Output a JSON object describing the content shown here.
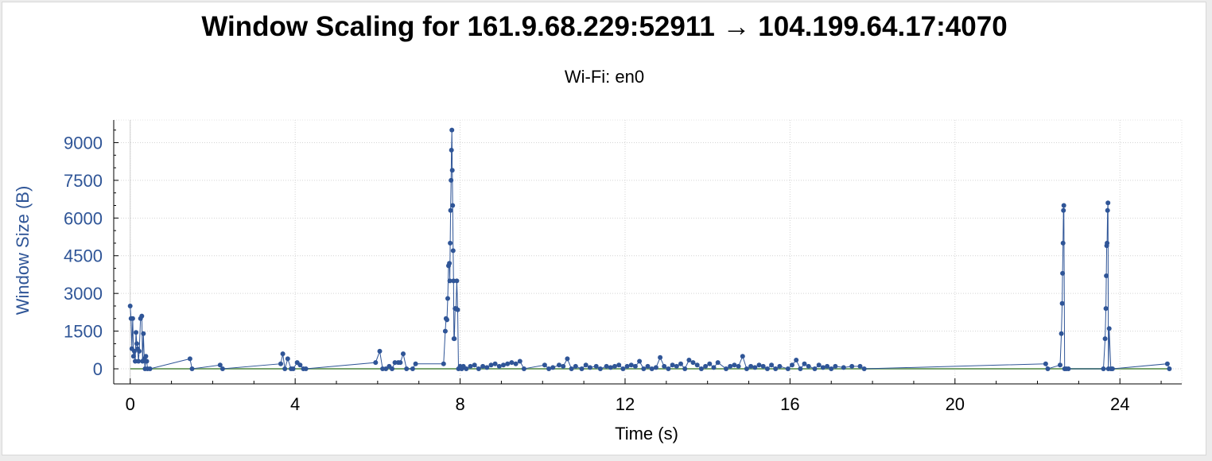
{
  "title": "Window Scaling for 161.9.68.229:52911 → 104.199.64.17:4070",
  "subtitle": "Wi-Fi: en0",
  "chart_data": {
    "type": "line",
    "xlabel": "Time (s)",
    "ylabel": "Window Size (B)",
    "xlim": [
      -0.4,
      25.5
    ],
    "ylim": [
      -600,
      9900
    ],
    "xticks": [
      0,
      4,
      8,
      12,
      16,
      20,
      24
    ],
    "xtick_labels": [
      "0",
      "4",
      "8",
      "12",
      "16",
      "20",
      "24"
    ],
    "yticks": [
      0,
      1500,
      3000,
      4500,
      6000,
      7500,
      9000
    ],
    "ytick_labels": [
      "0",
      "1500",
      "3000",
      "4500",
      "6000",
      "7500",
      "9000"
    ],
    "grid": true,
    "colors": {
      "series": "#2f5597",
      "baseline": "#7aa570"
    },
    "series": [
      {
        "x": [
          0.0,
          0.02,
          0.04,
          0.06,
          0.08,
          0.1,
          0.12,
          0.14,
          0.16,
          0.18,
          0.2,
          0.22,
          0.25,
          0.28,
          0.3,
          0.32,
          0.34,
          0.36,
          0.38,
          0.4,
          0.42,
          0.48,
          1.45,
          1.5,
          2.18,
          2.24,
          3.65,
          3.7,
          3.75,
          3.82,
          3.9,
          3.95,
          4.05,
          4.12,
          4.2,
          4.26,
          5.95,
          6.05,
          6.12,
          6.2,
          6.28,
          6.35,
          6.42,
          6.5,
          6.55,
          6.62,
          6.7,
          6.85,
          6.92,
          7.6,
          7.64,
          7.66,
          7.68,
          7.7,
          7.72,
          7.74,
          7.75,
          7.76,
          7.77,
          7.78,
          7.79,
          7.8,
          7.81,
          7.82,
          7.83,
          7.84,
          7.85,
          7.86,
          7.88,
          7.9,
          7.92,
          7.94,
          7.96,
          8.0,
          8.04,
          8.08,
          8.15,
          8.25,
          8.35,
          8.45,
          8.55,
          8.65,
          8.75,
          8.85,
          8.95,
          9.05,
          9.15,
          9.25,
          9.35,
          9.45,
          9.55,
          10.05,
          10.15,
          10.25,
          10.4,
          10.5,
          10.6,
          10.7,
          10.8,
          10.95,
          11.05,
          11.15,
          11.3,
          11.4,
          11.55,
          11.65,
          11.75,
          11.85,
          11.95,
          12.05,
          12.15,
          12.25,
          12.35,
          12.45,
          12.55,
          12.65,
          12.75,
          12.85,
          12.95,
          13.05,
          13.15,
          13.25,
          13.35,
          13.45,
          13.55,
          13.65,
          13.75,
          13.85,
          13.95,
          14.05,
          14.15,
          14.25,
          14.45,
          14.55,
          14.65,
          14.75,
          14.85,
          14.95,
          15.05,
          15.15,
          15.25,
          15.35,
          15.45,
          15.55,
          15.65,
          15.75,
          15.95,
          16.05,
          16.15,
          16.25,
          16.35,
          16.45,
          16.6,
          16.7,
          16.8,
          16.9,
          17.0,
          17.1,
          17.3,
          17.5,
          17.7,
          17.8,
          22.2,
          22.25,
          22.55,
          22.58,
          22.6,
          22.61,
          22.62,
          22.63,
          22.64,
          22.66,
          22.7,
          22.75,
          23.6,
          23.64,
          23.66,
          23.67,
          23.68,
          23.69,
          23.7,
          23.71,
          23.72,
          23.74,
          23.78,
          23.82,
          25.15,
          25.2
        ],
        "y": [
          2500,
          2000,
          800,
          2000,
          500,
          700,
          300,
          1450,
          1000,
          800,
          300,
          700,
          2000,
          2100,
          300,
          1400,
          400,
          0,
          500,
          300,
          0,
          0,
          400,
          0,
          150,
          0,
          200,
          600,
          0,
          400,
          0,
          0,
          250,
          150,
          0,
          0,
          250,
          700,
          0,
          0,
          100,
          0,
          250,
          250,
          250,
          600,
          0,
          0,
          200,
          200,
          1500,
          2000,
          1950,
          2800,
          4100,
          4200,
          3500,
          5000,
          6300,
          7500,
          8700,
          9500,
          7900,
          6500,
          4700,
          3500,
          1200,
          1200,
          2400,
          2400,
          3500,
          2350,
          0,
          100,
          0,
          100,
          0,
          100,
          150,
          0,
          100,
          50,
          150,
          200,
          100,
          150,
          200,
          250,
          200,
          300,
          0,
          150,
          0,
          50,
          150,
          100,
          400,
          0,
          100,
          0,
          150,
          50,
          100,
          0,
          100,
          50,
          100,
          150,
          0,
          100,
          150,
          100,
          300,
          0,
          100,
          0,
          50,
          450,
          100,
          0,
          150,
          100,
          200,
          0,
          350,
          250,
          150,
          0,
          100,
          200,
          50,
          250,
          0,
          100,
          150,
          100,
          500,
          0,
          100,
          50,
          150,
          100,
          0,
          150,
          0,
          100,
          0,
          150,
          350,
          0,
          200,
          100,
          0,
          150,
          50,
          100,
          0,
          100,
          50,
          100,
          100,
          0,
          200,
          0,
          150,
          1400,
          2600,
          3800,
          5000,
          6300,
          6500,
          0,
          0,
          0,
          0,
          1200,
          2400,
          3700,
          4900,
          5000,
          6300,
          6600,
          0,
          1600,
          0,
          0,
          200,
          0
        ]
      }
    ]
  }
}
